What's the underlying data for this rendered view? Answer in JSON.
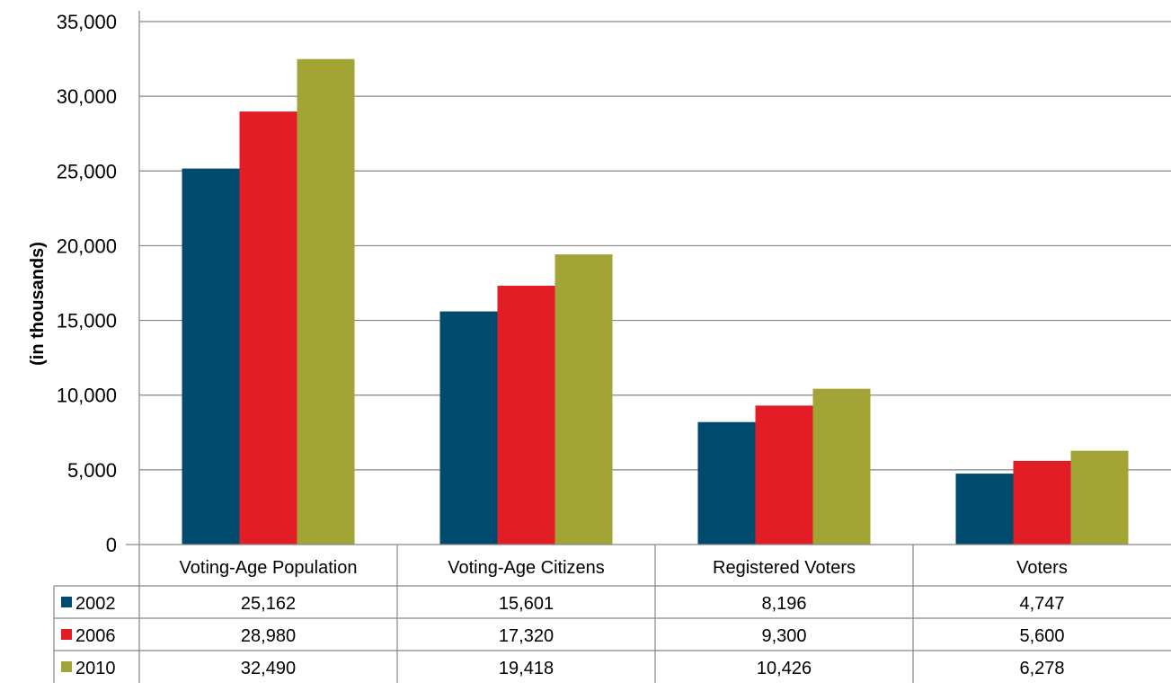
{
  "chart_data": {
    "type": "bar",
    "title": "",
    "xlabel": "",
    "ylabel": "(in thousands)",
    "ylim": [
      0,
      35000
    ],
    "yticks": [
      0,
      5000,
      10000,
      15000,
      20000,
      25000,
      30000,
      35000
    ],
    "ytick_labels": [
      "0",
      "5,000",
      "10,000",
      "15,000",
      "20,000",
      "25,000",
      "30,000",
      "35,000"
    ],
    "grid": true,
    "legend": "data-table",
    "categories": [
      "Voting-Age Population",
      "Voting-Age Citizens",
      "Registered Voters",
      "Voters"
    ],
    "series": [
      {
        "name": "2002",
        "color": "#004a6e",
        "values": [
          25162,
          15601,
          8196,
          4747
        ],
        "labels": [
          "25,162",
          "15,601",
          "8,196",
          "4,747"
        ]
      },
      {
        "name": "2006",
        "color": "#e31d25",
        "values": [
          28980,
          17320,
          9300,
          5600
        ],
        "labels": [
          "28,980",
          "17,320",
          "9,300",
          "5,600"
        ]
      },
      {
        "name": "2010",
        "color": "#a2a535",
        "values": [
          32490,
          19418,
          10426,
          6278
        ],
        "labels": [
          "32,490",
          "19,418",
          "10,426",
          "6,278"
        ]
      }
    ]
  }
}
